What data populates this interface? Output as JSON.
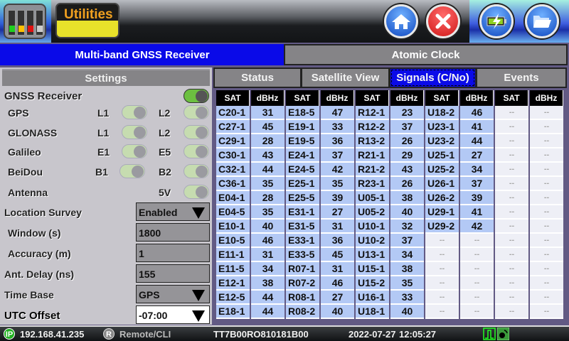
{
  "header": {
    "app_title": "Utilities",
    "icons": {
      "app": "equipment-rack-icon",
      "home": "home-icon",
      "close": "close-icon",
      "power": "battery-charging-icon",
      "files": "folder-open-icon"
    }
  },
  "main_tabs": [
    {
      "label": "Multi-band GNSS Receiver",
      "active": true
    },
    {
      "label": "Atomic Clock",
      "active": false
    }
  ],
  "settings": {
    "title": "Settings",
    "gnss_receiver": {
      "label": "GNSS Receiver",
      "enabled": true
    },
    "constellations": [
      {
        "label": "GPS",
        "band1": "L1",
        "band2": "L2"
      },
      {
        "label": "GLONASS",
        "band1": "L1",
        "band2": "L2"
      },
      {
        "label": "Galileo",
        "band1": "E1",
        "band2": "E5"
      },
      {
        "label": "BeiDou",
        "band1": "B1",
        "band2": "B2"
      }
    ],
    "antenna": {
      "label": "Antenna",
      "band": "5V"
    },
    "location_survey": {
      "label": "Location Survey",
      "value": "Enabled"
    },
    "window": {
      "label": "Window (s)",
      "value": "1800"
    },
    "accuracy": {
      "label": "Accuracy (m)",
      "value": "1"
    },
    "ant_delay": {
      "label": "Ant. Delay (ns)",
      "value": "155"
    },
    "time_base": {
      "label": "Time Base",
      "value": "GPS"
    },
    "utc_offset": {
      "label": "UTC Offset",
      "value": "-07:00"
    }
  },
  "sub_tabs": [
    {
      "label": "Status"
    },
    {
      "label": "Satellite View"
    },
    {
      "label": "Signals (C/No)",
      "active": true
    },
    {
      "label": "Events"
    }
  ],
  "signals": {
    "headers": [
      "SAT",
      "dBHz",
      "SAT",
      "dBHz",
      "SAT",
      "dBHz",
      "SAT",
      "dBHz",
      "SAT",
      "dBHz"
    ],
    "empty": "--",
    "rows": [
      [
        "C20-1",
        "31",
        "E18-5",
        "47",
        "R12-1",
        "23",
        "U18-2",
        "46",
        "--",
        "--"
      ],
      [
        "C27-1",
        "45",
        "E19-1",
        "33",
        "R12-2",
        "37",
        "U23-1",
        "41",
        "--",
        "--"
      ],
      [
        "C29-1",
        "28",
        "E19-5",
        "36",
        "R13-2",
        "26",
        "U23-2",
        "44",
        "--",
        "--"
      ],
      [
        "C30-1",
        "43",
        "E24-1",
        "37",
        "R21-1",
        "29",
        "U25-1",
        "27",
        "--",
        "--"
      ],
      [
        "C32-1",
        "44",
        "E24-5",
        "42",
        "R21-2",
        "43",
        "U25-2",
        "34",
        "--",
        "--"
      ],
      [
        "C36-1",
        "35",
        "E25-1",
        "35",
        "R23-1",
        "26",
        "U26-1",
        "37",
        "--",
        "--"
      ],
      [
        "E04-1",
        "28",
        "E25-5",
        "39",
        "U05-1",
        "38",
        "U26-2",
        "39",
        "--",
        "--"
      ],
      [
        "E04-5",
        "35",
        "E31-1",
        "27",
        "U05-2",
        "40",
        "U29-1",
        "41",
        "--",
        "--"
      ],
      [
        "E10-1",
        "40",
        "E31-5",
        "31",
        "U10-1",
        "32",
        "U29-2",
        "42",
        "--",
        "--"
      ],
      [
        "E10-5",
        "46",
        "E33-1",
        "36",
        "U10-2",
        "37",
        "--",
        "--",
        "--",
        "--"
      ],
      [
        "E11-1",
        "31",
        "E33-5",
        "45",
        "U13-1",
        "34",
        "--",
        "--",
        "--",
        "--"
      ],
      [
        "E11-5",
        "34",
        "R07-1",
        "31",
        "U15-1",
        "38",
        "--",
        "--",
        "--",
        "--"
      ],
      [
        "E12-1",
        "38",
        "R07-2",
        "46",
        "U15-2",
        "35",
        "--",
        "--",
        "--",
        "--"
      ],
      [
        "E12-5",
        "44",
        "R08-1",
        "27",
        "U16-1",
        "33",
        "--",
        "--",
        "--",
        "--"
      ],
      [
        "E18-1",
        "44",
        "R08-2",
        "40",
        "U18-1",
        "40",
        "--",
        "--",
        "--",
        "--"
      ]
    ]
  },
  "status_bar": {
    "ip_badge": "IP",
    "ip": "192.168.41.235",
    "remote_badge": "R",
    "remote": "Remote/CLI",
    "serial": "TT7B00RO810181B00",
    "date": "2022-07-27",
    "time": "12:05:27",
    "icons": [
      "signal-pulse-icon",
      "satellite-dish-icon"
    ]
  }
}
